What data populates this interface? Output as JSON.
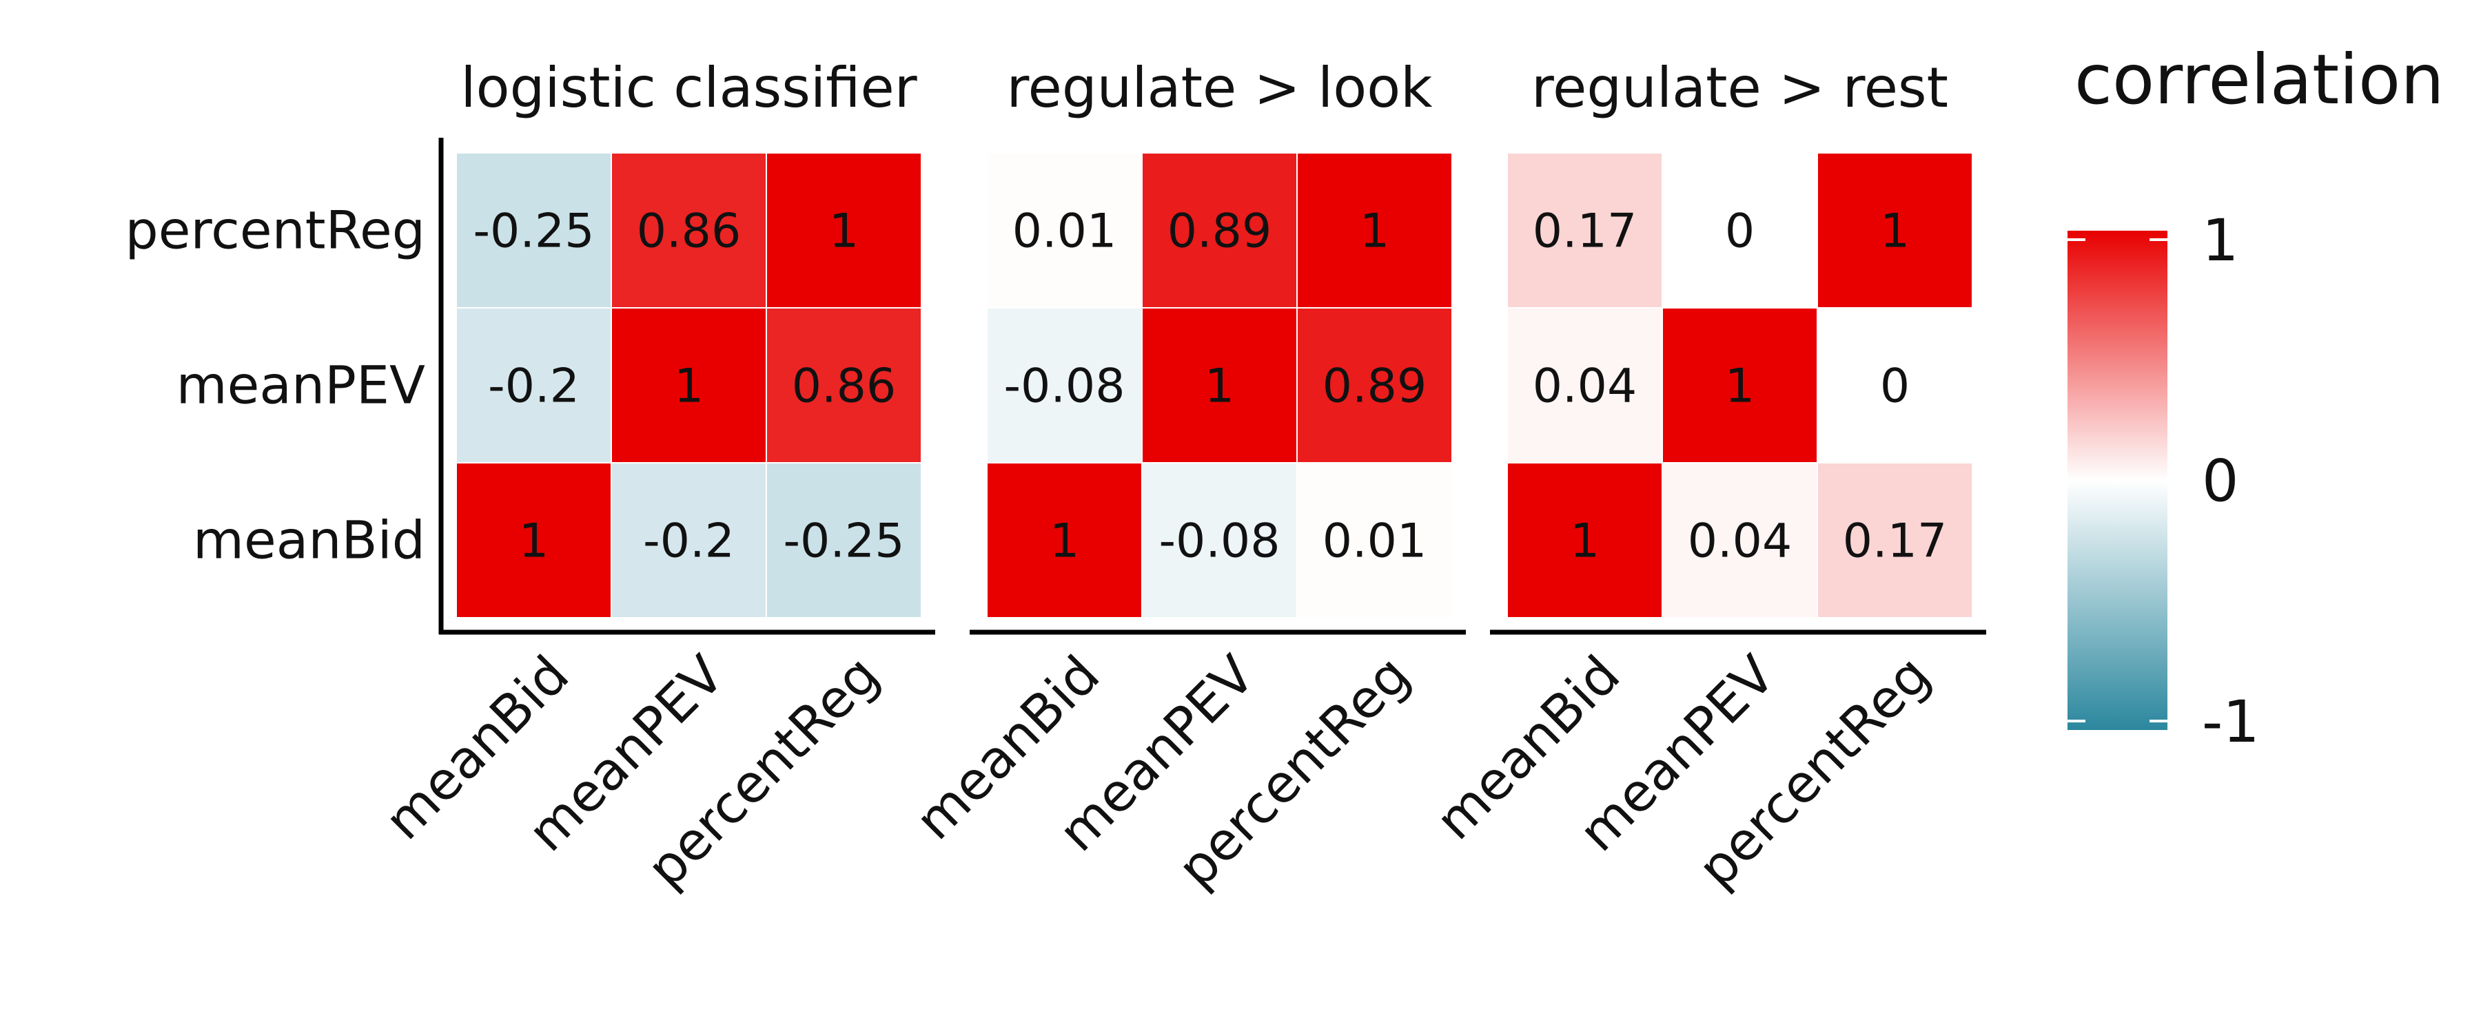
{
  "chart_data": {
    "type": "heatmap",
    "facets": [
      {
        "title": "logistic classifier",
        "x_categories": [
          "meanBid",
          "meanPEV",
          "percentReg"
        ],
        "y_categories": [
          "percentReg",
          "meanPEV",
          "meanBid"
        ],
        "values": [
          [
            -0.25,
            0.86,
            1
          ],
          [
            -0.2,
            1,
            0.86
          ],
          [
            1,
            -0.2,
            -0.25
          ]
        ],
        "labels": [
          [
            "-0.25",
            "0.86",
            "1"
          ],
          [
            "-0.2",
            "1",
            "0.86"
          ],
          [
            "1",
            "-0.2",
            "-0.25"
          ]
        ]
      },
      {
        "title": "regulate > look",
        "x_categories": [
          "meanBid",
          "meanPEV",
          "percentReg"
        ],
        "y_categories": [
          "percentReg",
          "meanPEV",
          "meanBid"
        ],
        "values": [
          [
            0.01,
            0.89,
            1
          ],
          [
            -0.08,
            1,
            0.89
          ],
          [
            1,
            -0.08,
            0.01
          ]
        ],
        "labels": [
          [
            "0.01",
            "0.89",
            "1"
          ],
          [
            "-0.08",
            "1",
            "0.89"
          ],
          [
            "1",
            "-0.08",
            "0.01"
          ]
        ]
      },
      {
        "title": "regulate > rest",
        "x_categories": [
          "meanBid",
          "meanPEV",
          "percentReg"
        ],
        "y_categories": [
          "percentReg",
          "meanPEV",
          "meanBid"
        ],
        "values": [
          [
            0.17,
            0,
            1
          ],
          [
            0.04,
            1,
            0
          ],
          [
            1,
            0.04,
            0.17
          ]
        ],
        "labels": [
          [
            "0.17",
            "0",
            "1"
          ],
          [
            "0.04",
            "1",
            "0"
          ],
          [
            "1",
            "0.04",
            "0.17"
          ]
        ]
      }
    ],
    "legend": {
      "title": "correlation",
      "ticks": [
        "1",
        "0",
        "-1"
      ],
      "tick_values": [
        1,
        0,
        -1
      ],
      "range": [
        -1,
        1
      ],
      "placement": "right"
    },
    "color_scale": {
      "low": "#2b879e",
      "mid": "#ffffff",
      "high": "#e80000"
    },
    "grid": false
  }
}
